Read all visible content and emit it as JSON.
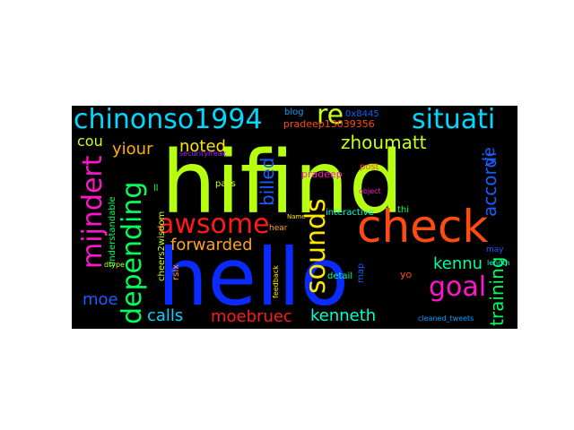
{
  "words": [
    {
      "text": "hello",
      "color": "#0a2bff"
    },
    {
      "text": "hifind",
      "color": "#b6ff0f"
    },
    {
      "text": "check",
      "color": "#ff4a12"
    },
    {
      "text": "chinonso1994",
      "color": "#00d8ff"
    },
    {
      "text": "situati",
      "color": "#00d8ff"
    },
    {
      "text": "re",
      "color": "#c6ff1e"
    },
    {
      "text": "mijndert",
      "color": "#ff16c9"
    },
    {
      "text": "depending",
      "color": "#00ff5c"
    },
    {
      "text": "awsome",
      "color": "#ff1a1a"
    },
    {
      "text": "sounds",
      "color": "#ffe600"
    },
    {
      "text": "goal",
      "color": "#ff16c9"
    },
    {
      "text": "forwarded",
      "color": "#ffa126"
    },
    {
      "text": "noted",
      "color": "#ffe600"
    },
    {
      "text": "zhoumatt",
      "color": "#c6ff1e"
    },
    {
      "text": "billed",
      "color": "#1a5cff"
    },
    {
      "text": "yiour",
      "color": "#ffb000"
    },
    {
      "text": "cou",
      "color": "#c6ff1e"
    },
    {
      "text": "ve",
      "color": "#1a5cff"
    },
    {
      "text": "accordi",
      "color": "#1a5cff"
    },
    {
      "text": "kennu",
      "color": "#00ffa0"
    },
    {
      "text": "training",
      "color": "#00ff5c"
    },
    {
      "text": "kenneth",
      "color": "#00ffd0"
    },
    {
      "text": "calls",
      "color": "#00d8ff"
    },
    {
      "text": "moebruec",
      "color": "#ff1a1a"
    },
    {
      "text": "moe",
      "color": "#1a5cff"
    },
    {
      "text": "blog",
      "color": "#00a0ff"
    },
    {
      "text": "0x8445",
      "color": "#1a5cff"
    },
    {
      "text": "pradeep13039356",
      "color": "#ff4a12"
    },
    {
      "text": "securityfreak",
      "color": "#a020ff"
    },
    {
      "text": "pradeep",
      "color": "#ff16c9"
    },
    {
      "text": "post",
      "color": "#ff4a12"
    },
    {
      "text": "pass",
      "color": "#c6ff1e"
    },
    {
      "text": "object",
      "color": "#ff16c9"
    },
    {
      "text": "interactive",
      "color": "#00ffd0"
    },
    {
      "text": "thi",
      "color": "#00ff5c"
    },
    {
      "text": "Name",
      "color": "#ffe600"
    },
    {
      "text": "hear",
      "color": "#ffa126"
    },
    {
      "text": "detail",
      "color": "#00ffa0"
    },
    {
      "text": "cheers2wisdom",
      "color": "#c6ff1e"
    },
    {
      "text": "understandable",
      "color": "#00ff5c"
    },
    {
      "text": "ll",
      "color": "#00ff5c"
    },
    {
      "text": "dtype",
      "color": "#c6ff1e"
    },
    {
      "text": "rsix",
      "color": "#ffa126"
    },
    {
      "text": "feedback",
      "color": "#ffe600"
    },
    {
      "text": "map",
      "color": "#1a5cff"
    },
    {
      "text": "yo",
      "color": "#ff4a12"
    },
    {
      "text": "cleaned_tweets",
      "color": "#00a0ff"
    },
    {
      "text": "length",
      "color": "#00ffd0"
    },
    {
      "text": "may",
      "color": "#1a5cff"
    }
  ]
}
